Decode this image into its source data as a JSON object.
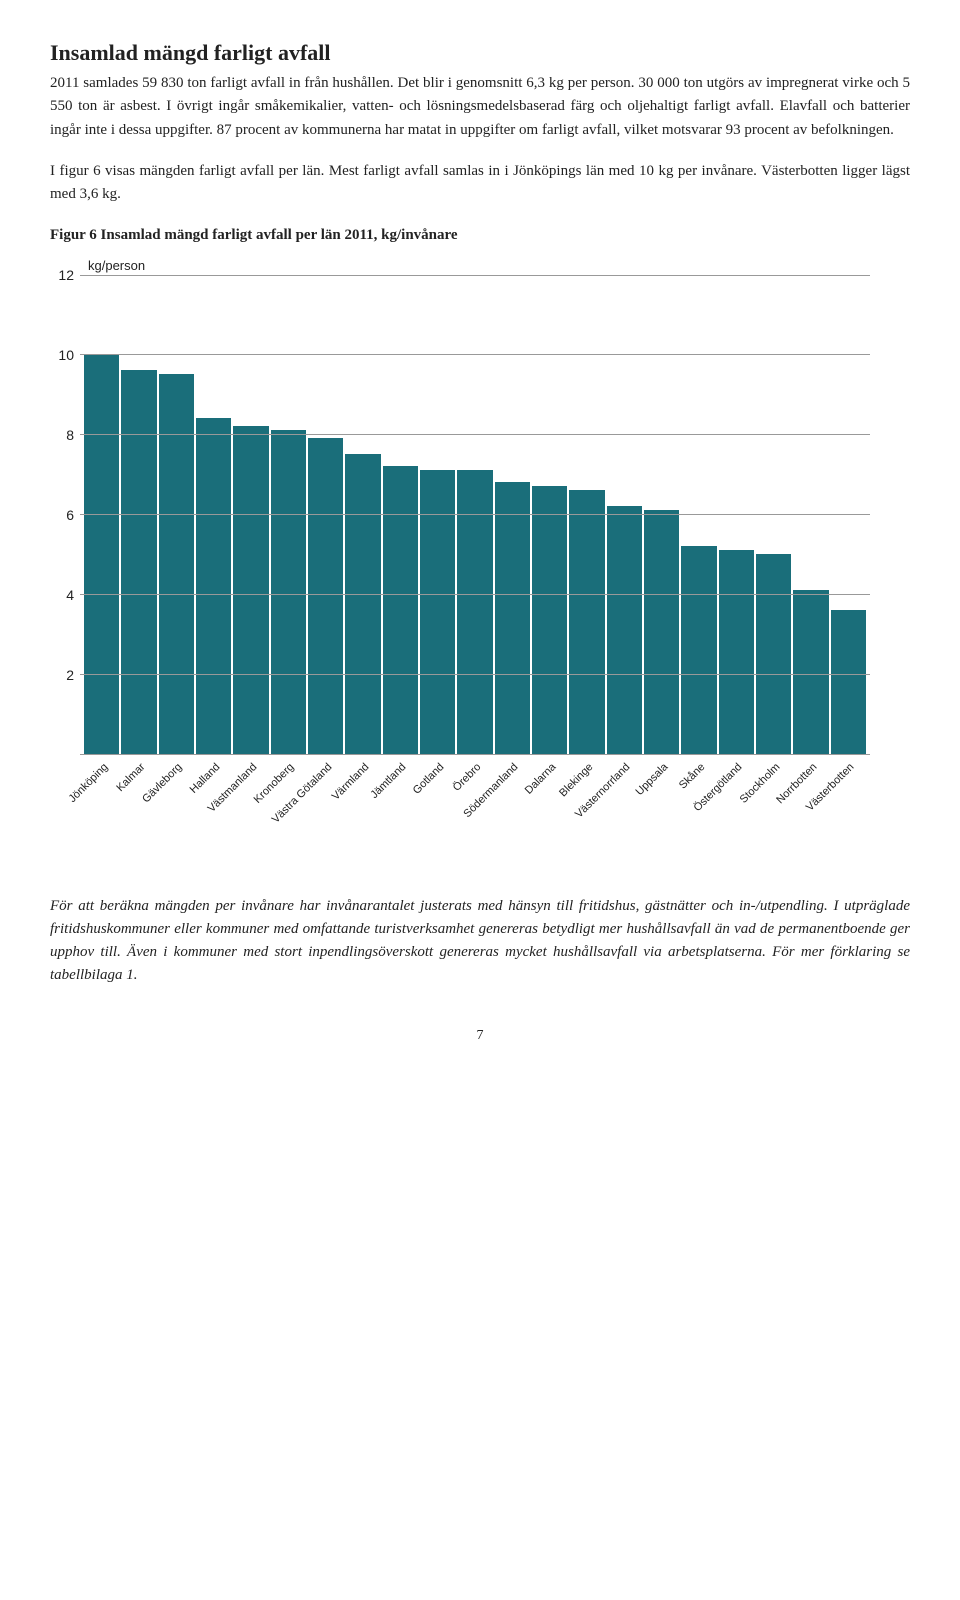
{
  "heading": "Insamlad mängd farligt avfall",
  "para1": "2011 samlades 59 830 ton farligt avfall in från hushållen. Det blir i genomsnitt 6,3 kg per person. 30 000 ton utgörs av impregnerat virke och 5 550 ton är asbest. I övrigt ingår småkemikalier, vatten- och lösningsmedelsbaserad färg och oljehaltigt farligt avfall. Elavfall och batterier ingår inte i dessa uppgifter. 87 procent av kommunerna har matat in uppgifter om farligt avfall, vilket motsvarar 93 procent av befolkningen.",
  "para2": "I figur 6 visas mängden farligt avfall per län. Mest farligt avfall samlas in i Jönköpings län med 10 kg per invånare. Västerbotten ligger lägst med 3,6 kg.",
  "figure_title": "Figur 6 Insamlad mängd farligt avfall per län 2011, kg/invånare",
  "chart": {
    "type": "bar",
    "y_unit_label": "kg/person",
    "y_max": 12,
    "y_ticks": [
      12,
      10,
      8,
      6,
      4,
      2
    ],
    "bar_color": "#1a6e7a",
    "grid_color": "#999999",
    "background_color": "#ffffff",
    "label_font": "Arial",
    "label_fontsize": 11,
    "axis_fontsize": 14,
    "categories": [
      "Jönköping",
      "Kalmar",
      "Gävleborg",
      "Halland",
      "Västmanland",
      "Kronoberg",
      "Västra Götaland",
      "Värmland",
      "Jämtland",
      "Gotland",
      "Örebro",
      "Södermanland",
      "Dalarna",
      "Blekinge",
      "Västernorrland",
      "Uppsala",
      "Skåne",
      "Östergötland",
      "Stockholm",
      "Norrbotten",
      "Västerbotten"
    ],
    "values": [
      10.0,
      9.6,
      9.5,
      8.4,
      8.2,
      8.1,
      7.9,
      7.5,
      7.2,
      7.1,
      7.1,
      6.8,
      6.7,
      6.6,
      6.2,
      6.1,
      5.2,
      5.1,
      5.0,
      4.1,
      3.6
    ]
  },
  "footnote": "För att beräkna mängden per invånare har invånarantalet justerats med hänsyn till fritidshus, gästnätter och in-/utpendling. I utpräglade fritidshuskommuner eller kommuner med omfattande turistverksamhet genereras betydligt mer hushållsavfall än vad de permanentboende ger upphov till. Även i kommuner med stort inpendlingsöverskott genereras mycket hushållsavfall via arbetsplatserna. För mer förklaring se tabellbilaga 1.",
  "page_number": "7"
}
